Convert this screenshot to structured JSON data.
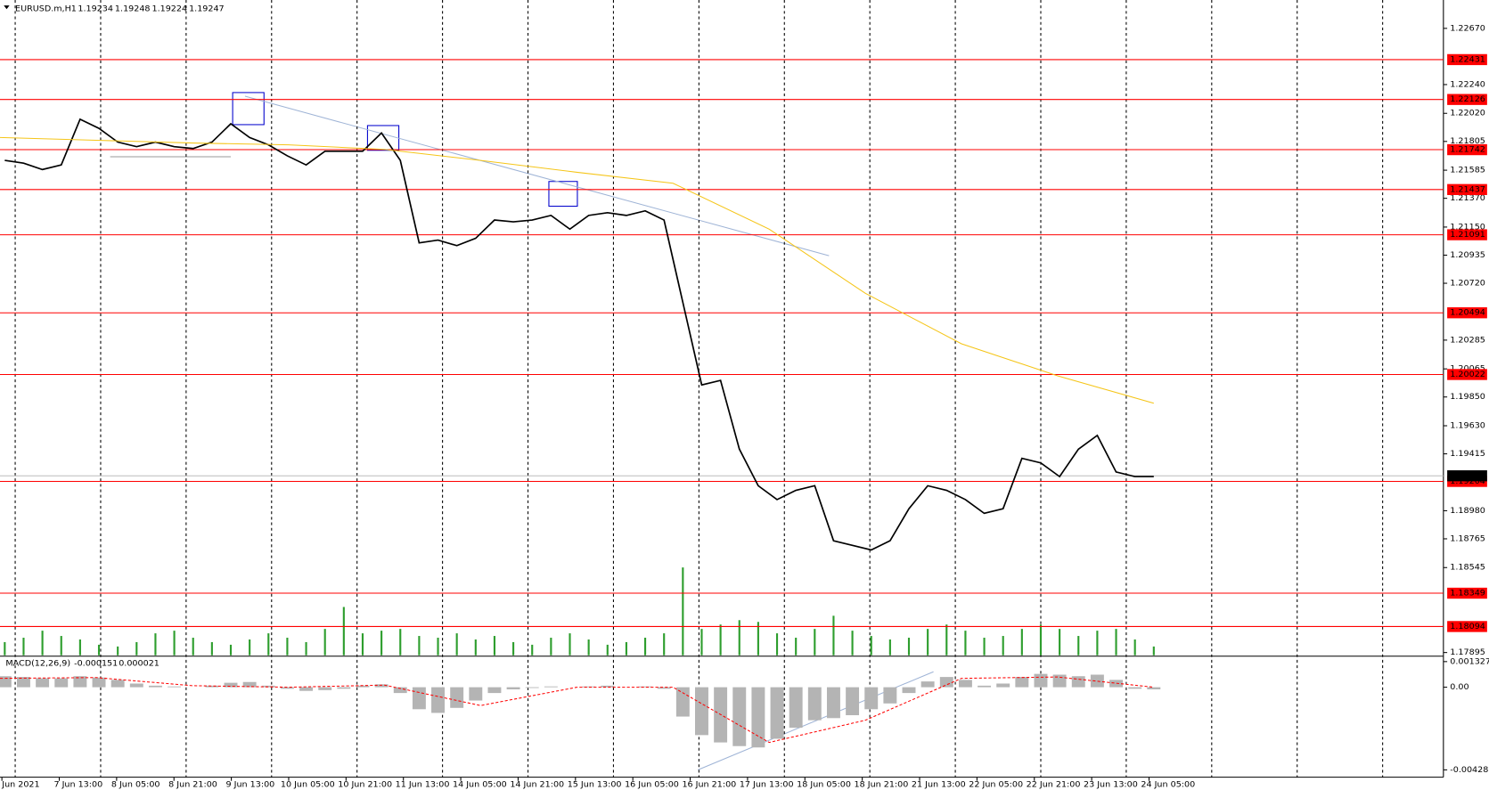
{
  "chart_data": [
    {
      "type": "line",
      "title": "EURUSD.m,H1",
      "ohlc": [
        1.19234,
        1.19248,
        1.19224,
        1.19247
      ],
      "ylim": [
        1.17874,
        1.22887
      ],
      "yticks": [
        {
          "value": 1.2267,
          "label": "1.22670"
        },
        {
          "value": 1.2224,
          "label": "1.22240"
        },
        {
          "value": 1.2202,
          "label": "1.22020"
        },
        1.21805,
        1.21585,
        {
          "value": 1.2137,
          "label": "1.21370"
        },
        {
          "value": 1.2115,
          "label": "1.21150"
        },
        1.20935,
        {
          "value": 1.2072,
          "label": "1.20720"
        },
        1.20285,
        1.20065,
        {
          "value": 1.1985,
          "label": "1.19850"
        },
        {
          "value": 1.1963,
          "label": "1.19630"
        },
        1.19415,
        {
          "value": 1.1898,
          "label": "1.18980"
        },
        1.18765,
        1.18545,
        1.17895
      ],
      "levels": [
        1.22431,
        1.22126,
        1.21742,
        1.21437,
        1.21091,
        1.20494,
        1.20022,
        1.19204,
        1.18349,
        1.18094
      ],
      "level_color": "#ff0000",
      "current_price": 1.19247,
      "grid": true,
      "xtick_labels": [
        "Jun 2021",
        "7 Jun 13:00",
        "8 Jun 05:00",
        "8 Jun 21:00",
        "9 Jun 13:00",
        "10 Jun 05:00",
        "10 Jun 21:00",
        "11 Jun 13:00",
        "14 Jun 05:00",
        "14 Jun 21:00",
        "15 Jun 13:00",
        "16 Jun 05:00",
        "16 Jun 21:00",
        "17 Jun 13:00",
        "18 Jun 05:00",
        "18 Jun 21:00",
        "21 Jun 13:00",
        "22 Jun 05:00",
        "22 Jun 21:00",
        "23 Jun 13:00",
        "24 Jun 05:00"
      ],
      "series": [
        {
          "color": "#000000",
          "values": [
            1.2166,
            1.21639,
            1.2159,
            1.21625,
            1.21975,
            1.21905,
            1.218,
            1.21765,
            1.218,
            1.21765,
            1.21751,
            1.218,
            1.2194,
            1.21835,
            1.21779,
            1.21695,
            1.21625,
            1.2173,
            1.2173,
            1.2173,
            1.2187,
            1.2166,
            1.21029,
            1.2105,
            1.21008,
            1.21064,
            1.21204,
            1.2119,
            1.21204,
            1.21239,
            1.21134,
            1.21239,
            1.2126,
            1.21239,
            1.21274,
            1.21204,
            1.20573,
            1.19942,
            1.19977,
            1.19451,
            1.19171,
            1.19065,
            1.19136,
            1.19171,
            1.1875,
            1.18715,
            1.1868,
            1.1875,
            1.18995,
            1.19171,
            1.19136,
            1.19065,
            1.1896,
            1.18995,
            1.19381,
            1.19346,
            1.19241,
            1.19451,
            1.19556,
            1.19276,
            1.19241,
            1.19241
          ]
        },
        {
          "color": "#f5c518",
          "values": [
            1.21835,
            1.21814,
            1.21793,
            1.21779,
            1.21744,
            1.2166,
            1.21569,
            1.21485,
            1.21134,
            1.20643,
            1.20257,
            1.20012,
            1.19802
          ]
        }
      ]
    },
    {
      "type": "bar",
      "color": "#2e9e2e",
      "ylim": [
        0,
        120
      ],
      "values": [
        15,
        20,
        28,
        22,
        18,
        12,
        10,
        15,
        25,
        28,
        20,
        15,
        12,
        18,
        25,
        20,
        15,
        30,
        55,
        25,
        28,
        30,
        22,
        20,
        25,
        18,
        22,
        15,
        12,
        20,
        25,
        18,
        12,
        15,
        20,
        25,
        100,
        30,
        35,
        40,
        38,
        25,
        20,
        30,
        45,
        28,
        22,
        18,
        20,
        30,
        35,
        28,
        20,
        22,
        30,
        35,
        30,
        22,
        28,
        30,
        18,
        10
      ]
    },
    {
      "type": "bar",
      "title": "MACD(12,26,9)",
      "readout": [
        -0.000151,
        2.1e-05
      ],
      "color": "#b4b4b4",
      "ylim": [
        -0.00466,
        0.00156
      ],
      "yticks": [
        0.001327,
        {
          "value": 0,
          "label": "0.00"
        },
        -0.004281
      ],
      "values": [
        0.00057,
        0.00053,
        0.00046,
        0.00046,
        0.00057,
        0.0005,
        0.00038,
        0.00019,
        8e-05,
        4e-05,
        0,
        8e-05,
        0.00023,
        0.00027,
        8e-05,
        -8e-05,
        -0.00019,
        -0.00015,
        -8e-05,
        8e-05,
        0.00015,
        -0.0003,
        -0.00114,
        -0.00133,
        -0.00107,
        -0.00069,
        -0.0003,
        -0.00011,
        -4e-05,
        4e-05,
        0,
        4e-05,
        8e-05,
        0,
        4e-05,
        -8e-05,
        -0.00152,
        -0.00248,
        -0.00286,
        -0.00305,
        -0.00312,
        -0.00267,
        -0.0021,
        -0.00171,
        -0.0016,
        -0.00145,
        -0.00114,
        -0.00084,
        -0.0003,
        0.0003,
        0.00053,
        0.00038,
        8e-05,
        0.00019,
        0.00053,
        0.00069,
        0.00065,
        0.00057,
        0.00065,
        0.00038,
        -8e-05,
        -0.00011
      ],
      "signal": {
        "color": "#ff0000",
        "values": [
          0.00046,
          0.0005,
          8e-05,
          0,
          0.00011,
          -0.00095,
          0,
          0,
          -0.00286,
          -0.00171,
          0.00046,
          0.00053,
          0
        ]
      }
    }
  ]
}
